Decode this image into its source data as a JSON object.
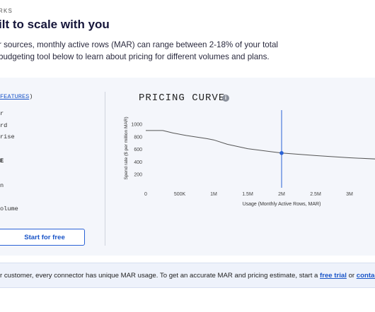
{
  "header": {
    "eyebrow": "RKS",
    "headline": "ilt to scale with you",
    "intro_line1": "r sources, monthly active rows (MAR) can range between 2-18% of your total",
    "intro_line2": "budgeting tool below to learn about pricing for different volumes and plans."
  },
  "sidebar": {
    "features_prefix": "",
    "features_link": "FEATURES",
    "features_suffix": ")",
    "plans": [
      "r",
      "rd",
      "rise"
    ],
    "section_label": "E",
    "volume_items": [
      "n",
      ""
    ],
    "volume_label": "olume",
    "cta_label": "Start for free"
  },
  "chart": {
    "title": "PRICING CURVE",
    "info_icon": "info-icon"
  },
  "chart_data": {
    "type": "line",
    "ylabel": "Spend rate ($ per million MAR)",
    "xlabel": "Usage (Monthly Active Rows, MAR)",
    "x_ticks": [
      "0",
      "500K",
      "1M",
      "1.5M",
      "2M",
      "2.5M",
      "3M"
    ],
    "x_tick_values": [
      0,
      500000,
      1000000,
      1500000,
      2000000,
      2500000,
      3000000
    ],
    "y_ticks": [
      200,
      400,
      600,
      800,
      1000
    ],
    "xlim": [
      0,
      3400000
    ],
    "ylim": [
      0,
      1150
    ],
    "grid": false,
    "series": [
      {
        "x": [
          0,
          250000,
          400000,
          600000,
          900000,
          1000000,
          1200000,
          1500000,
          2000000,
          2500000,
          3000000,
          3400000
        ],
        "values": [
          900,
          900,
          860,
          820,
          770,
          750,
          680,
          610,
          540,
          500,
          465,
          445
        ]
      }
    ],
    "marker": {
      "x": 2000000,
      "y": 540
    },
    "accent": "#2a62d6"
  },
  "note": {
    "text": "r customer, every connector has unique MAR usage. To get an accurate MAR and pricing estimate, start a ",
    "link1": "free trial",
    "middle": " or ",
    "link2": "contac"
  }
}
